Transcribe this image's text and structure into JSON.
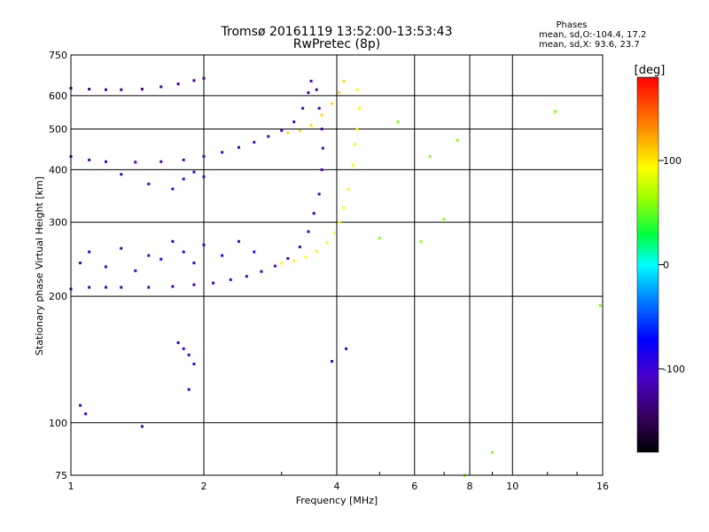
{
  "chart_data": {
    "type": "scatter",
    "title": "Tromsø 20161119 13:52:00-13:53:43",
    "subtitle": "RwPretec (8p)",
    "stats": {
      "heading": "Phases",
      "line1": "mean, sd,O:-104.4, 17.2",
      "line2": "mean, sd,X:  93.6, 23.7"
    },
    "xlabel": "Frequency [MHz]",
    "ylabel": "Stationary phase Virtual Height [km]",
    "x_scale": "log",
    "y_scale": "log",
    "xlim": [
      1,
      16
    ],
    "ylim": [
      75,
      750
    ],
    "x_ticks": [
      1,
      2,
      4,
      6,
      8,
      10,
      16
    ],
    "x_tick_labels": [
      "1",
      "2",
      "4",
      "6",
      "8",
      "10",
      "16"
    ],
    "y_ticks": [
      75,
      100,
      200,
      300,
      400,
      500,
      600,
      750
    ],
    "y_tick_labels": [
      "75",
      "100",
      "200",
      "300",
      "400",
      "500",
      "600",
      "750"
    ],
    "grid": true,
    "colorbar": {
      "label": "[deg]",
      "range": [
        -180,
        180
      ],
      "ticks": [
        100,
        0,
        -100
      ],
      "tick_labels": [
        "100",
        "0",
        "-100"
      ]
    },
    "series": [
      {
        "description": "O-mode F2 trace (lower)",
        "phase_deg": -115,
        "points": [
          [
            1.0,
            208
          ],
          [
            1.1,
            210
          ],
          [
            1.2,
            210
          ],
          [
            1.3,
            210
          ],
          [
            1.5,
            210
          ],
          [
            1.7,
            211
          ],
          [
            1.9,
            213
          ],
          [
            2.1,
            215
          ],
          [
            2.3,
            219
          ],
          [
            2.5,
            223
          ],
          [
            2.7,
            229
          ],
          [
            2.9,
            236
          ],
          [
            3.1,
            246
          ],
          [
            3.3,
            262
          ],
          [
            3.45,
            285
          ],
          [
            3.55,
            315
          ],
          [
            3.65,
            350
          ],
          [
            3.7,
            400
          ],
          [
            3.72,
            450
          ],
          [
            3.7,
            500
          ],
          [
            3.65,
            560
          ],
          [
            3.6,
            620
          ],
          [
            3.5,
            650
          ]
        ]
      },
      {
        "description": "X-mode F2 trace (lower)",
        "phase_deg": 95,
        "points": [
          [
            3.0,
            240
          ],
          [
            3.2,
            243
          ],
          [
            3.4,
            248
          ],
          [
            3.6,
            256
          ],
          [
            3.8,
            268
          ],
          [
            3.95,
            283
          ],
          [
            4.05,
            300
          ],
          [
            4.15,
            325
          ],
          [
            4.25,
            360
          ],
          [
            4.35,
            410
          ],
          [
            4.4,
            460
          ],
          [
            4.45,
            500
          ],
          [
            4.5,
            560
          ],
          [
            4.45,
            620
          ]
        ]
      },
      {
        "description": "O-mode multiple echo (upper)",
        "phase_deg": -110,
        "points": [
          [
            1.0,
            430
          ],
          [
            1.1,
            422
          ],
          [
            1.2,
            418
          ],
          [
            1.4,
            417
          ],
          [
            1.6,
            418
          ],
          [
            1.8,
            422
          ],
          [
            2.0,
            430
          ],
          [
            2.2,
            440
          ],
          [
            2.4,
            452
          ],
          [
            2.6,
            465
          ],
          [
            2.8,
            480
          ],
          [
            3.0,
            496
          ],
          [
            3.2,
            520
          ],
          [
            3.35,
            560
          ],
          [
            3.45,
            610
          ]
        ]
      },
      {
        "description": "O-mode second multiple (top)",
        "phase_deg": -125,
        "points": [
          [
            1.0,
            625
          ],
          [
            1.1,
            622
          ],
          [
            1.2,
            620
          ],
          [
            1.3,
            620
          ],
          [
            1.45,
            622
          ],
          [
            1.6,
            630
          ],
          [
            1.75,
            640
          ],
          [
            1.9,
            652
          ],
          [
            2.0,
            660
          ]
        ]
      },
      {
        "description": "X-mode upper echo",
        "phase_deg": 105,
        "points": [
          [
            3.1,
            490
          ],
          [
            3.3,
            495
          ],
          [
            3.5,
            510
          ],
          [
            3.7,
            540
          ],
          [
            3.9,
            575
          ],
          [
            4.05,
            610
          ],
          [
            4.15,
            650
          ]
        ]
      },
      {
        "description": "Scattered low-frequency echoes",
        "phase_deg": -100,
        "points": [
          [
            1.05,
            240
          ],
          [
            1.1,
            255
          ],
          [
            1.2,
            235
          ],
          [
            1.3,
            260
          ],
          [
            1.4,
            230
          ],
          [
            1.5,
            250
          ],
          [
            1.6,
            245
          ],
          [
            1.7,
            270
          ],
          [
            1.8,
            255
          ],
          [
            1.9,
            240
          ],
          [
            2.0,
            265
          ],
          [
            2.2,
            250
          ],
          [
            2.4,
            270
          ],
          [
            2.6,
            255
          ],
          [
            1.3,
            390
          ],
          [
            1.5,
            370
          ],
          [
            1.7,
            360
          ],
          [
            1.8,
            380
          ],
          [
            1.9,
            395
          ],
          [
            2.0,
            385
          ],
          [
            1.8,
            150
          ],
          [
            1.85,
            145
          ],
          [
            1.9,
            138
          ],
          [
            1.75,
            155
          ],
          [
            1.85,
            120
          ],
          [
            1.05,
            110
          ],
          [
            1.08,
            105
          ],
          [
            1.45,
            98
          ],
          [
            4.2,
            150
          ],
          [
            3.9,
            140
          ]
        ]
      },
      {
        "description": "Isolated high-frequency echoes",
        "phase_deg": 60,
        "points": [
          [
            6.5,
            430
          ],
          [
            7.5,
            470
          ],
          [
            7.0,
            305
          ],
          [
            6.2,
            270
          ],
          [
            12.5,
            550
          ],
          [
            15.8,
            190
          ],
          [
            5.5,
            520
          ],
          [
            5.0,
            275
          ],
          [
            9.0,
            85
          ],
          [
            7.8,
            75
          ]
        ]
      }
    ]
  }
}
